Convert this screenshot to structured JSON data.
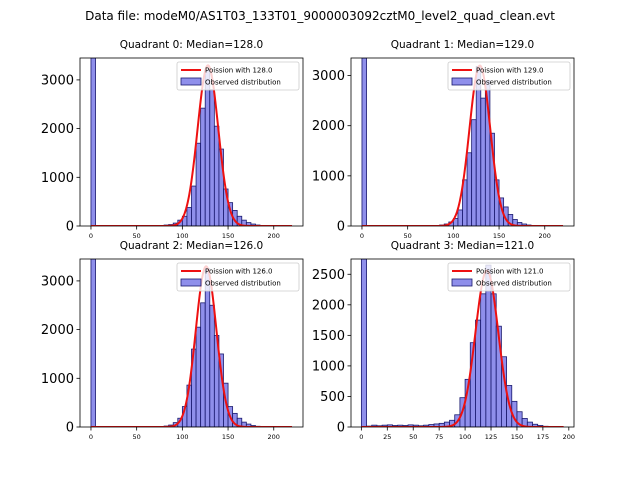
{
  "figure_title": "Data file: modeM0/AS1T03_133T01_9000003092cztM0_level2_quad_clean.evt",
  "colors": {
    "bar_fill": "#7b7be8",
    "bar_edge": "#1a1a6e",
    "poisson_line": "#ee1111"
  },
  "chart_data": [
    {
      "type": "bar",
      "title": "Quadrant 0: Median=128.0",
      "legend": {
        "placement": "top-right",
        "entries": [
          "Poission with 128.0",
          "Observed distribution"
        ]
      },
      "xlim": [
        -12,
        232
      ],
      "ylim": [
        0,
        3450
      ],
      "xticks": [
        0,
        50,
        100,
        150,
        200
      ],
      "yticks": [
        0,
        1000,
        2000,
        3000
      ],
      "bin_width": 5,
      "bins": [
        {
          "x": 0,
          "y": 3450
        },
        {
          "x": 70,
          "y": 5
        },
        {
          "x": 75,
          "y": 10
        },
        {
          "x": 80,
          "y": 20
        },
        {
          "x": 85,
          "y": 30
        },
        {
          "x": 90,
          "y": 60
        },
        {
          "x": 95,
          "y": 120
        },
        {
          "x": 100,
          "y": 200
        },
        {
          "x": 105,
          "y": 380
        },
        {
          "x": 110,
          "y": 820
        },
        {
          "x": 115,
          "y": 1700
        },
        {
          "x": 120,
          "y": 2420
        },
        {
          "x": 125,
          "y": 3200
        },
        {
          "x": 130,
          "y": 2800
        },
        {
          "x": 135,
          "y": 2050
        },
        {
          "x": 140,
          "y": 1580
        },
        {
          "x": 145,
          "y": 760
        },
        {
          "x": 150,
          "y": 480
        },
        {
          "x": 155,
          "y": 320
        },
        {
          "x": 160,
          "y": 200
        },
        {
          "x": 165,
          "y": 120
        },
        {
          "x": 170,
          "y": 70
        },
        {
          "x": 175,
          "y": 40
        },
        {
          "x": 180,
          "y": 20
        },
        {
          "x": 185,
          "y": 10
        }
      ],
      "poisson": {
        "mean": 128,
        "x_range": [
          0,
          220
        ],
        "peak": 3300
      }
    },
    {
      "type": "bar",
      "title": "Quadrant 1: Median=129.0",
      "legend": {
        "placement": "top-right",
        "entries": [
          "Poission with 129.0",
          "Observed distribution"
        ]
      },
      "xlim": [
        -12,
        232
      ],
      "ylim": [
        0,
        3350
      ],
      "xticks": [
        0,
        50,
        100,
        150,
        200
      ],
      "yticks": [
        0,
        1000,
        2000,
        3000
      ],
      "bin_width": 5,
      "bins": [
        {
          "x": 0,
          "y": 3350
        },
        {
          "x": 75,
          "y": 5
        },
        {
          "x": 80,
          "y": 10
        },
        {
          "x": 85,
          "y": 20
        },
        {
          "x": 90,
          "y": 40
        },
        {
          "x": 95,
          "y": 80
        },
        {
          "x": 100,
          "y": 150
        },
        {
          "x": 105,
          "y": 320
        },
        {
          "x": 110,
          "y": 920
        },
        {
          "x": 115,
          "y": 1460
        },
        {
          "x": 120,
          "y": 2120
        },
        {
          "x": 125,
          "y": 3180
        },
        {
          "x": 130,
          "y": 2550
        },
        {
          "x": 135,
          "y": 2900
        },
        {
          "x": 140,
          "y": 1850
        },
        {
          "x": 145,
          "y": 920
        },
        {
          "x": 150,
          "y": 560
        },
        {
          "x": 155,
          "y": 380
        },
        {
          "x": 160,
          "y": 230
        },
        {
          "x": 165,
          "y": 130
        },
        {
          "x": 170,
          "y": 70
        },
        {
          "x": 175,
          "y": 40
        },
        {
          "x": 180,
          "y": 20
        },
        {
          "x": 185,
          "y": 10
        }
      ],
      "poisson": {
        "mean": 129,
        "x_range": [
          0,
          220
        ],
        "peak": 3200
      }
    },
    {
      "type": "bar",
      "title": "Quadrant 2: Median=126.0",
      "legend": {
        "placement": "top-right",
        "entries": [
          "Poission with 126.0",
          "Observed distribution"
        ]
      },
      "xlim": [
        -12,
        232
      ],
      "ylim": [
        0,
        3450
      ],
      "xticks": [
        0,
        50,
        100,
        150,
        200
      ],
      "yticks": [
        0,
        1000,
        2000,
        3000
      ],
      "bin_width": 5,
      "bins": [
        {
          "x": 0,
          "y": 3450
        },
        {
          "x": 70,
          "y": 5
        },
        {
          "x": 75,
          "y": 10
        },
        {
          "x": 80,
          "y": 20
        },
        {
          "x": 85,
          "y": 40
        },
        {
          "x": 90,
          "y": 90
        },
        {
          "x": 95,
          "y": 180
        },
        {
          "x": 100,
          "y": 420
        },
        {
          "x": 105,
          "y": 860
        },
        {
          "x": 110,
          "y": 1600
        },
        {
          "x": 115,
          "y": 2050
        },
        {
          "x": 120,
          "y": 2550
        },
        {
          "x": 125,
          "y": 3250
        },
        {
          "x": 130,
          "y": 2500
        },
        {
          "x": 135,
          "y": 1880
        },
        {
          "x": 140,
          "y": 1500
        },
        {
          "x": 145,
          "y": 900
        },
        {
          "x": 150,
          "y": 420
        },
        {
          "x": 155,
          "y": 280
        },
        {
          "x": 160,
          "y": 180
        },
        {
          "x": 165,
          "y": 100
        },
        {
          "x": 170,
          "y": 60
        },
        {
          "x": 175,
          "y": 30
        },
        {
          "x": 180,
          "y": 15
        }
      ],
      "poisson": {
        "mean": 126,
        "x_range": [
          0,
          220
        ],
        "peak": 3300
      }
    },
    {
      "type": "bar",
      "title": "Quadrant 3: Median=121.0",
      "legend": {
        "placement": "top-right",
        "entries": [
          "Poission with 121.0",
          "Observed distribution"
        ]
      },
      "xlim": [
        -10,
        205
      ],
      "ylim": [
        0,
        2750
      ],
      "xticks": [
        0,
        25,
        50,
        75,
        100,
        125,
        150,
        175,
        200
      ],
      "yticks": [
        0,
        500,
        1000,
        1500,
        2000,
        2500
      ],
      "bin_width": 5,
      "bins": [
        {
          "x": 0,
          "y": 2750
        },
        {
          "x": 5,
          "y": 15
        },
        {
          "x": 10,
          "y": 30
        },
        {
          "x": 15,
          "y": 20
        },
        {
          "x": 20,
          "y": 30
        },
        {
          "x": 25,
          "y": 35
        },
        {
          "x": 30,
          "y": 25
        },
        {
          "x": 35,
          "y": 30
        },
        {
          "x": 40,
          "y": 25
        },
        {
          "x": 45,
          "y": 35
        },
        {
          "x": 50,
          "y": 30
        },
        {
          "x": 55,
          "y": 20
        },
        {
          "x": 60,
          "y": 30
        },
        {
          "x": 65,
          "y": 40
        },
        {
          "x": 70,
          "y": 50
        },
        {
          "x": 75,
          "y": 60
        },
        {
          "x": 80,
          "y": 80
        },
        {
          "x": 85,
          "y": 110
        },
        {
          "x": 90,
          "y": 200
        },
        {
          "x": 95,
          "y": 480
        },
        {
          "x": 100,
          "y": 780
        },
        {
          "x": 105,
          "y": 1380
        },
        {
          "x": 110,
          "y": 1750
        },
        {
          "x": 115,
          "y": 2180
        },
        {
          "x": 120,
          "y": 2650
        },
        {
          "x": 125,
          "y": 2180
        },
        {
          "x": 130,
          "y": 1650
        },
        {
          "x": 135,
          "y": 1150
        },
        {
          "x": 140,
          "y": 680
        },
        {
          "x": 145,
          "y": 420
        },
        {
          "x": 150,
          "y": 250
        },
        {
          "x": 155,
          "y": 140
        },
        {
          "x": 160,
          "y": 80
        },
        {
          "x": 165,
          "y": 45
        },
        {
          "x": 170,
          "y": 25
        },
        {
          "x": 175,
          "y": 12
        },
        {
          "x": 180,
          "y": 6
        }
      ],
      "poisson": {
        "mean": 121,
        "x_range": [
          0,
          195
        ],
        "peak": 2560
      }
    }
  ]
}
